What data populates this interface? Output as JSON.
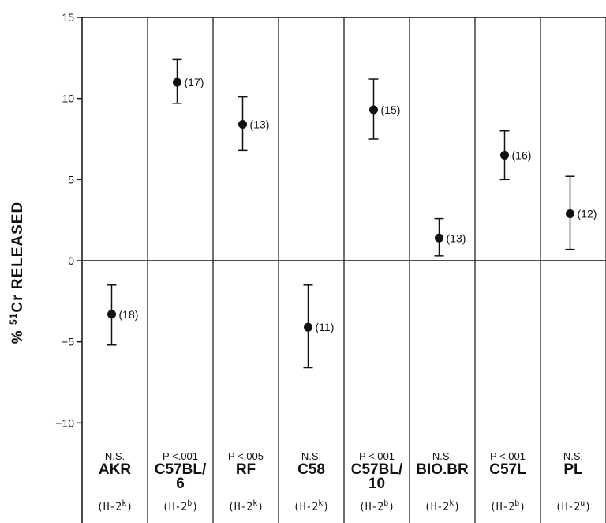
{
  "chart_data": {
    "type": "scatter",
    "ylabel_prefix": "% ",
    "ylabel_super": "51",
    "ylabel_suffix": "Cr RELEASED",
    "ylim": [
      -13.5,
      15
    ],
    "yticks": [
      15,
      10,
      5,
      0,
      -5,
      -10
    ],
    "grid": false,
    "columns": [
      {
        "strain": "AKR",
        "significance": "N.S.",
        "haplotype_base": "(H-2",
        "haplotype_allele": "k",
        "mean": -3.3,
        "low": -5.2,
        "high": -1.5,
        "n": "(18)"
      },
      {
        "strain": "C57BL/",
        "strain2": "6",
        "significance": "P <.001",
        "haplotype_base": "(H-2",
        "haplotype_allele": "b",
        "mean": 11.0,
        "low": 9.7,
        "high": 12.4,
        "n": "(17)"
      },
      {
        "strain": "RF",
        "significance": "P <.005",
        "haplotype_base": "(H-2",
        "haplotype_allele": "k",
        "mean": 8.4,
        "low": 6.8,
        "high": 10.1,
        "n": "(13)"
      },
      {
        "strain": "C58",
        "significance": "N.S.",
        "haplotype_base": "(H-2",
        "haplotype_allele": "k",
        "mean": -4.1,
        "low": -6.6,
        "high": -1.5,
        "n": "(11)"
      },
      {
        "strain": "C57BL/",
        "strain2": "10",
        "significance": "P <.001",
        "haplotype_base": "(H-2",
        "haplotype_allele": "b",
        "mean": 9.3,
        "low": 7.5,
        "high": 11.2,
        "n": "(15)"
      },
      {
        "strain": "BIO.BR",
        "significance": "N.S.",
        "haplotype_base": "(H-2",
        "haplotype_allele": "k",
        "mean": 1.4,
        "low": 0.3,
        "high": 2.6,
        "n": "(13)"
      },
      {
        "strain": "C57L",
        "significance": "P <.001",
        "haplotype_base": "(H-2",
        "haplotype_allele": "b",
        "mean": 6.5,
        "low": 5.0,
        "high": 8.0,
        "n": "(16)"
      },
      {
        "strain": "PL",
        "significance": "N.S.",
        "haplotype_base": "(H-2",
        "haplotype_allele": "u",
        "mean": 2.9,
        "low": 0.7,
        "high": 5.2,
        "n": "(12)"
      }
    ]
  }
}
